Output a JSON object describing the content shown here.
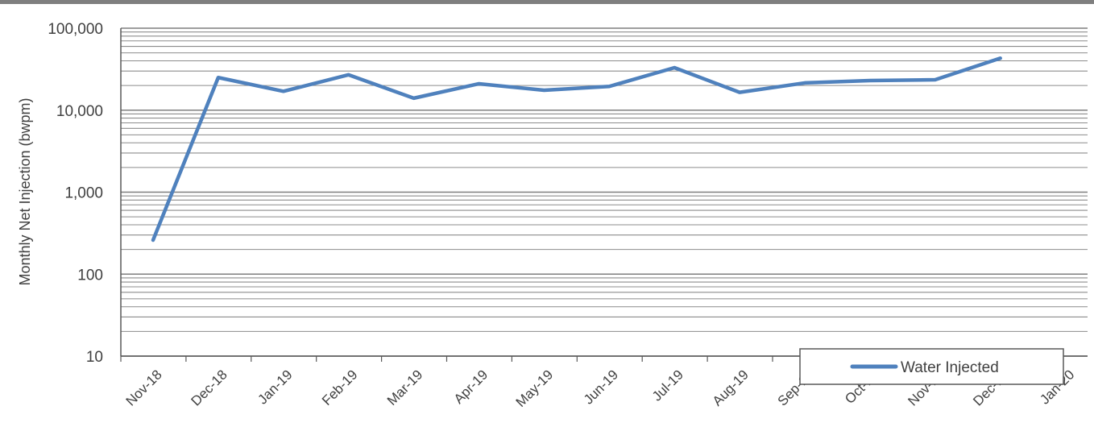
{
  "chart_data": {
    "type": "line",
    "title": "",
    "xlabel": "",
    "ylabel": "Monthly Net Injection (bwpm)",
    "y_scale": "log",
    "ylim": [
      10,
      100000
    ],
    "y_ticks": [
      "10",
      "100",
      "1,000",
      "10,000",
      "100,000"
    ],
    "categories": [
      "Nov-18",
      "Dec-18",
      "Jan-19",
      "Feb-19",
      "Mar-19",
      "Apr-19",
      "May-19",
      "Jun-19",
      "Jul-19",
      "Aug-19",
      "Sep-19",
      "Oct-19",
      "Nov-19",
      "Dec-19",
      "Jan-20"
    ],
    "grid": true,
    "legend_position": "bottom-right",
    "series": [
      {
        "name": "Water Injected",
        "color": "#4f81bd",
        "values": [
          260,
          25000,
          17000,
          27000,
          14000,
          21000,
          17500,
          19500,
          33000,
          16500,
          21500,
          23000,
          23500,
          43000,
          null
        ]
      }
    ]
  }
}
